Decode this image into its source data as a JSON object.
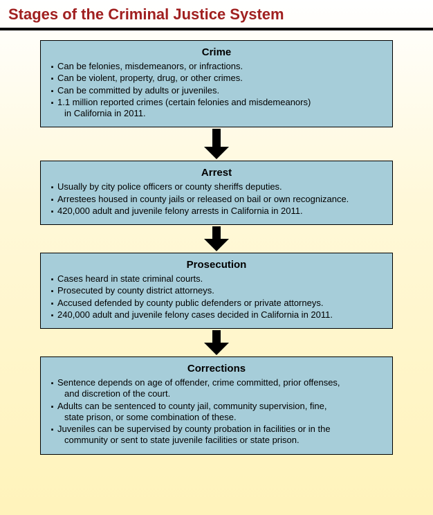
{
  "title": "Stages of the Criminal Justice System",
  "title_color": "#a02020",
  "divider_color": "#000000",
  "box_bg": "#a6cdd9",
  "box_border": "#000000",
  "text_color": "#000000",
  "arrow_color": "#000000",
  "arrow_stem_heights": [
    26,
    18,
    18
  ],
  "stages": [
    {
      "title": "Crime",
      "bullets": [
        [
          "Can be felonies, misdemeanors, or infractions."
        ],
        [
          "Can be violent, property, drug, or other crimes."
        ],
        [
          "Can be committed by adults or juveniles."
        ],
        [
          "1.1 million reported crimes (certain felonies and misdemeanors)",
          "in California in 2011."
        ]
      ]
    },
    {
      "title": "Arrest",
      "bullets": [
        [
          "Usually by city police officers or county sheriffs deputies."
        ],
        [
          "Arrestees housed in county jails or released on bail or own recognizance."
        ],
        [
          "420,000 adult and juvenile felony arrests in California in 2011."
        ]
      ]
    },
    {
      "title": "Prosecution",
      "bullets": [
        [
          "Cases heard in state criminal courts."
        ],
        [
          "Prosecuted by county district attorneys."
        ],
        [
          "Accused defended by county public defenders or private attorneys."
        ],
        [
          "240,000 adult and juvenile felony cases decided in California in 2011."
        ]
      ]
    },
    {
      "title": "Corrections",
      "bullets": [
        [
          "Sentence depends on age of offender, crime committed, prior offenses,",
          "and discretion of the court."
        ],
        [
          "Adults can be sentenced to county jail, community supervision, fine,",
          "state prison, or some combination of these."
        ],
        [
          "Juveniles can be supervised by county probation in facilities or in the",
          "community or sent to state juvenile facilities or state prison."
        ]
      ]
    }
  ]
}
